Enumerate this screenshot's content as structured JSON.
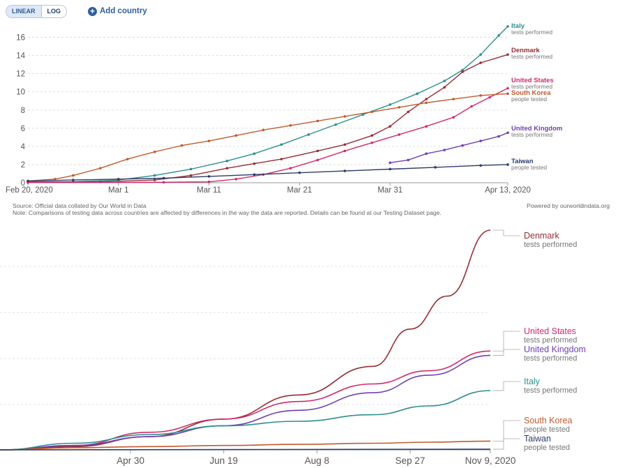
{
  "controls": {
    "linear_label": "LINEAR",
    "log_label": "LOG",
    "add_country_label": "Add country"
  },
  "source": {
    "source_text": "Source: Official data collated by Our World in Data",
    "note_text": "Note: Comparisons of testing data across countries are affected by differences in the way the data are reported. Details can be found at our Testing Dataset page.",
    "powered_by": "Powered by ourworldindata.org"
  },
  "colors": {
    "italy": "#2a8f8d",
    "denmark": "#962d34",
    "united_states": "#cf2b6d",
    "south_korea": "#c25a2e",
    "united_kingdom": "#6f3fb2",
    "taiwan": "#2d3b6a",
    "grid": "#d7d7d7",
    "axis_text": "#555555"
  },
  "chart_data": [
    {
      "type": "line",
      "scale": "linear",
      "x_ticks": [
        "Feb 20, 2020",
        "Mar 1",
        "Mar 11",
        "Mar 21",
        "Mar 31",
        "Apr 13, 2020"
      ],
      "x_tick_days": [
        0,
        10,
        20,
        30,
        40,
        53
      ],
      "xlim": [
        0,
        53
      ],
      "ylim": [
        0,
        17.5
      ],
      "y_ticks": [
        0,
        2,
        4,
        6,
        8,
        10,
        12,
        14,
        16
      ],
      "grid": true,
      "series": [
        {
          "name": "Italy",
          "sub": "tests performed",
          "color_key": "italy",
          "end_value": 17.2,
          "points": [
            [
              0,
              0.1
            ],
            [
              5,
              0.1
            ],
            [
              10,
              0.3
            ],
            [
              14,
              0.8
            ],
            [
              18,
              1.5
            ],
            [
              22,
              2.4
            ],
            [
              25,
              3.2
            ],
            [
              28,
              4.2
            ],
            [
              31,
              5.3
            ],
            [
              34,
              6.4
            ],
            [
              37,
              7.5
            ],
            [
              40,
              8.6
            ],
            [
              43,
              9.8
            ],
            [
              46,
              11.2
            ],
            [
              48,
              12.4
            ],
            [
              50,
              14.1
            ],
            [
              52,
              16.2
            ],
            [
              53,
              17.2
            ]
          ]
        },
        {
          "name": "Denmark",
          "sub": "tests performed",
          "color_key": "denmark",
          "end_value": 14.1,
          "points": [
            [
              0,
              0.05
            ],
            [
              8,
              0.1
            ],
            [
              14,
              0.3
            ],
            [
              18,
              0.8
            ],
            [
              22,
              1.6
            ],
            [
              25,
              2.1
            ],
            [
              28,
              2.6
            ],
            [
              32,
              3.5
            ],
            [
              35,
              4.2
            ],
            [
              38,
              5.2
            ],
            [
              40,
              6.2
            ],
            [
              42,
              7.8
            ],
            [
              44,
              9.2
            ],
            [
              46,
              10.5
            ],
            [
              48,
              12.2
            ],
            [
              50,
              13.2
            ],
            [
              53,
              14.1
            ]
          ]
        },
        {
          "name": "United States",
          "sub": "tests performed",
          "color_key": "united_states",
          "end_value": 10.4,
          "points": [
            [
              0,
              0.02
            ],
            [
              15,
              0.05
            ],
            [
              20,
              0.1
            ],
            [
              23,
              0.4
            ],
            [
              26,
              0.9
            ],
            [
              29,
              1.6
            ],
            [
              32,
              2.5
            ],
            [
              35,
              3.5
            ],
            [
              38,
              4.4
            ],
            [
              41,
              5.3
            ],
            [
              44,
              6.2
            ],
            [
              47,
              7.2
            ],
            [
              49,
              8.4
            ],
            [
              51,
              9.4
            ],
            [
              53,
              10.4
            ]
          ]
        },
        {
          "name": "South Korea",
          "sub": "people tested",
          "color_key": "south_korea",
          "end_value": 9.8,
          "points": [
            [
              0,
              0.2
            ],
            [
              3,
              0.4
            ],
            [
              5,
              0.8
            ],
            [
              8,
              1.6
            ],
            [
              11,
              2.6
            ],
            [
              14,
              3.4
            ],
            [
              17,
              4.1
            ],
            [
              20,
              4.6
            ],
            [
              23,
              5.2
            ],
            [
              26,
              5.8
            ],
            [
              29,
              6.3
            ],
            [
              32,
              6.8
            ],
            [
              35,
              7.3
            ],
            [
              38,
              7.8
            ],
            [
              41,
              8.3
            ],
            [
              44,
              8.8
            ],
            [
              47,
              9.2
            ],
            [
              50,
              9.6
            ],
            [
              53,
              9.8
            ]
          ]
        },
        {
          "name": "United Kingdom",
          "sub": "tests performed",
          "color_key": "united_kingdom",
          "end_value": 5.5,
          "points": [
            [
              40,
              2.2
            ],
            [
              42,
              2.5
            ],
            [
              44,
              3.2
            ],
            [
              46,
              3.6
            ],
            [
              48,
              4.1
            ],
            [
              50,
              4.6
            ],
            [
              52,
              5.1
            ],
            [
              53,
              5.5
            ]
          ]
        },
        {
          "name": "Taiwan",
          "sub": "people tested",
          "color_key": "taiwan",
          "end_value": 2.0,
          "points": [
            [
              0,
              0.2
            ],
            [
              5,
              0.3
            ],
            [
              10,
              0.4
            ],
            [
              15,
              0.5
            ],
            [
              20,
              0.7
            ],
            [
              25,
              0.9
            ],
            [
              30,
              1.1
            ],
            [
              35,
              1.3
            ],
            [
              40,
              1.5
            ],
            [
              45,
              1.7
            ],
            [
              50,
              1.9
            ],
            [
              53,
              2.0
            ]
          ]
        }
      ]
    },
    {
      "type": "line",
      "x_ticks": [
        "Apr 30",
        "Jun 19",
        "Aug 8",
        "Sep 27",
        "Nov 9, 2020"
      ],
      "x_tick_days": [
        70,
        120,
        170,
        220,
        263
      ],
      "xlim": [
        0,
        263
      ],
      "ylim": [
        0,
        100
      ],
      "grid": true,
      "series": [
        {
          "name": "Denmark",
          "sub": "tests performed",
          "color_key": "denmark",
          "points": [
            [
              0,
              0
            ],
            [
              40,
              1.5
            ],
            [
              80,
              6
            ],
            [
              120,
              14
            ],
            [
              160,
              25
            ],
            [
              200,
              38
            ],
            [
              220,
              55
            ],
            [
              240,
              70
            ],
            [
              263,
              100
            ]
          ]
        },
        {
          "name": "United States",
          "sub": "tests performed",
          "color_key": "united_states",
          "points": [
            [
              0,
              0
            ],
            [
              40,
              2
            ],
            [
              80,
              8
            ],
            [
              120,
              14
            ],
            [
              160,
              22
            ],
            [
              200,
              30
            ],
            [
              230,
              36
            ],
            [
              263,
              45
            ]
          ]
        },
        {
          "name": "United Kingdom",
          "sub": "tests performed",
          "color_key": "united_kingdom",
          "points": [
            [
              0,
              0
            ],
            [
              40,
              2
            ],
            [
              80,
              6
            ],
            [
              120,
              11
            ],
            [
              160,
              18
            ],
            [
              200,
              26
            ],
            [
              230,
              34
            ],
            [
              263,
              43
            ]
          ]
        },
        {
          "name": "Italy",
          "sub": "tests performed",
          "color_key": "italy",
          "points": [
            [
              0,
              0
            ],
            [
              40,
              3
            ],
            [
              80,
              7
            ],
            [
              120,
              11
            ],
            [
              160,
              13
            ],
            [
              200,
              16
            ],
            [
              230,
              20
            ],
            [
              263,
              27
            ]
          ]
        },
        {
          "name": "South Korea",
          "sub": "people tested",
          "color_key": "south_korea",
          "points": [
            [
              0,
              0
            ],
            [
              40,
              1
            ],
            [
              80,
              1.5
            ],
            [
              120,
              2
            ],
            [
              160,
              2.5
            ],
            [
              200,
              3
            ],
            [
              230,
              3.5
            ],
            [
              263,
              4
            ]
          ]
        },
        {
          "name": "Taiwan",
          "sub": "people tested",
          "color_key": "taiwan",
          "points": [
            [
              0,
              0
            ],
            [
              263,
              0.3
            ]
          ]
        }
      ]
    }
  ]
}
